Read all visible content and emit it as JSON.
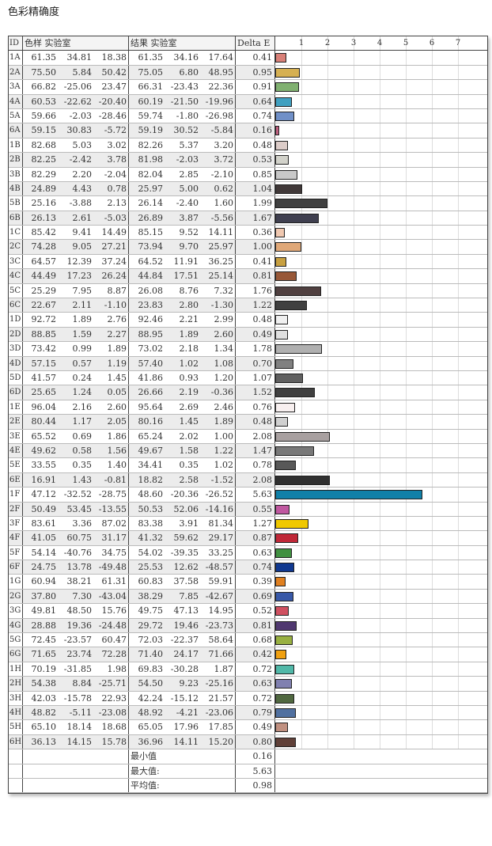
{
  "title": "色彩精确度",
  "headers": {
    "id": "ID",
    "sample": "色样 实验室",
    "result": "结果 实验室",
    "delta": "Delta E"
  },
  "chart_data": {
    "type": "bar",
    "orientation": "horizontal",
    "ticks": [
      "1",
      "2",
      "3",
      "4",
      "5",
      "6",
      "7"
    ],
    "xlim": [
      0,
      8
    ],
    "grid": true
  },
  "rows": [
    {
      "id": "1A",
      "s": [
        "61.35",
        "34.81",
        "18.38"
      ],
      "r": [
        "61.35",
        "34.16",
        "17.64"
      ],
      "de": "0.41",
      "color": "#d98078"
    },
    {
      "id": "2A",
      "s": [
        "75.50",
        "5.84",
        "50.42"
      ],
      "r": [
        "75.05",
        "6.80",
        "48.95"
      ],
      "de": "0.95",
      "color": "#d6b052"
    },
    {
      "id": "3A",
      "s": [
        "66.82",
        "-25.06",
        "23.47"
      ],
      "r": [
        "66.31",
        "-23.43",
        "22.36"
      ],
      "de": "0.91",
      "color": "#80b070"
    },
    {
      "id": "4A",
      "s": [
        "60.53",
        "-22.62",
        "-20.40"
      ],
      "r": [
        "60.19",
        "-21.50",
        "-19.96"
      ],
      "de": "0.64",
      "color": "#40a0c0"
    },
    {
      "id": "5A",
      "s": [
        "59.66",
        "-2.03",
        "-28.46"
      ],
      "r": [
        "59.74",
        "-1.80",
        "-26.98"
      ],
      "de": "0.74",
      "color": "#7090c8"
    },
    {
      "id": "6A",
      "s": [
        "59.15",
        "30.83",
        "-5.72"
      ],
      "r": [
        "59.19",
        "30.52",
        "-5.84"
      ],
      "de": "0.16",
      "color": "#c06080"
    },
    {
      "id": "1B",
      "s": [
        "82.68",
        "5.03",
        "3.02"
      ],
      "r": [
        "82.26",
        "5.37",
        "3.20"
      ],
      "de": "0.48",
      "color": "#dcccc8"
    },
    {
      "id": "2B",
      "s": [
        "82.25",
        "-2.42",
        "3.78"
      ],
      "r": [
        "81.98",
        "-2.03",
        "3.72"
      ],
      "de": "0.53",
      "color": "#d2d2ca"
    },
    {
      "id": "3B",
      "s": [
        "82.29",
        "2.20",
        "-2.04"
      ],
      "r": [
        "82.04",
        "2.85",
        "-2.10"
      ],
      "de": "0.85",
      "color": "#c8c8c8"
    },
    {
      "id": "4B",
      "s": [
        "24.89",
        "4.43",
        "0.78"
      ],
      "r": [
        "25.97",
        "5.00",
        "0.62"
      ],
      "de": "1.04",
      "color": "#403838"
    },
    {
      "id": "5B",
      "s": [
        "25.16",
        "-3.88",
        "2.13"
      ],
      "r": [
        "26.14",
        "-2.40",
        "1.60"
      ],
      "de": "1.99",
      "color": "#404040"
    },
    {
      "id": "6B",
      "s": [
        "26.13",
        "2.61",
        "-5.03"
      ],
      "r": [
        "26.89",
        "3.87",
        "-5.56"
      ],
      "de": "1.67",
      "color": "#404050"
    },
    {
      "id": "1C",
      "s": [
        "85.42",
        "9.41",
        "14.49"
      ],
      "r": [
        "85.15",
        "9.52",
        "14.11"
      ],
      "de": "0.36",
      "color": "#f0c8b0"
    },
    {
      "id": "2C",
      "s": [
        "74.28",
        "9.05",
        "27.21"
      ],
      "r": [
        "73.94",
        "9.70",
        "25.97"
      ],
      "de": "1.00",
      "color": "#e0a878"
    },
    {
      "id": "3C",
      "s": [
        "64.57",
        "12.39",
        "37.24"
      ],
      "r": [
        "64.52",
        "11.91",
        "36.25"
      ],
      "de": "0.41",
      "color": "#c8a040"
    },
    {
      "id": "4C",
      "s": [
        "44.49",
        "17.23",
        "26.24"
      ],
      "r": [
        "44.84",
        "17.51",
        "25.14"
      ],
      "de": "0.81",
      "color": "#985838"
    },
    {
      "id": "5C",
      "s": [
        "25.29",
        "7.95",
        "8.87"
      ],
      "r": [
        "26.08",
        "8.76",
        "7.32"
      ],
      "de": "1.76",
      "color": "#504040"
    },
    {
      "id": "6C",
      "s": [
        "22.67",
        "2.11",
        "-1.10"
      ],
      "r": [
        "23.83",
        "2.80",
        "-1.30"
      ],
      "de": "1.22",
      "color": "#404040"
    },
    {
      "id": "1D",
      "s": [
        "92.72",
        "1.89",
        "2.76"
      ],
      "r": [
        "92.46",
        "2.21",
        "2.99"
      ],
      "de": "0.48",
      "color": "#f0f0f0"
    },
    {
      "id": "2D",
      "s": [
        "88.85",
        "1.59",
        "2.27"
      ],
      "r": [
        "88.95",
        "1.89",
        "2.60"
      ],
      "de": "0.49",
      "color": "#e0e0e0"
    },
    {
      "id": "3D",
      "s": [
        "73.42",
        "0.99",
        "1.89"
      ],
      "r": [
        "73.02",
        "2.18",
        "1.34"
      ],
      "de": "1.78",
      "color": "#b0b0b0"
    },
    {
      "id": "4D",
      "s": [
        "57.15",
        "0.57",
        "1.19"
      ],
      "r": [
        "57.40",
        "1.02",
        "1.08"
      ],
      "de": "0.70",
      "color": "#808080"
    },
    {
      "id": "5D",
      "s": [
        "41.57",
        "0.24",
        "1.45"
      ],
      "r": [
        "41.86",
        "0.93",
        "1.20"
      ],
      "de": "1.07",
      "color": "#606060"
    },
    {
      "id": "6D",
      "s": [
        "25.65",
        "1.24",
        "0.05"
      ],
      "r": [
        "26.66",
        "2.19",
        "-0.36"
      ],
      "de": "1.52",
      "color": "#404040"
    },
    {
      "id": "1E",
      "s": [
        "96.04",
        "2.16",
        "2.60"
      ],
      "r": [
        "95.64",
        "2.69",
        "2.46"
      ],
      "de": "0.76",
      "color": "#f8f0f0"
    },
    {
      "id": "2E",
      "s": [
        "80.44",
        "1.17",
        "2.05"
      ],
      "r": [
        "80.16",
        "1.45",
        "1.89"
      ],
      "de": "0.48",
      "color": "#d0d0d0"
    },
    {
      "id": "3E",
      "s": [
        "65.52",
        "0.69",
        "1.86"
      ],
      "r": [
        "65.24",
        "2.02",
        "1.00"
      ],
      "de": "2.08",
      "color": "#a8a0a0"
    },
    {
      "id": "4E",
      "s": [
        "49.62",
        "0.58",
        "1.56"
      ],
      "r": [
        "49.67",
        "1.58",
        "1.22"
      ],
      "de": "1.47",
      "color": "#787878"
    },
    {
      "id": "5E",
      "s": [
        "33.55",
        "0.35",
        "1.40"
      ],
      "r": [
        "34.41",
        "0.35",
        "1.02"
      ],
      "de": "0.78",
      "color": "#585858"
    },
    {
      "id": "6E",
      "s": [
        "16.91",
        "1.43",
        "-0.81"
      ],
      "r": [
        "18.82",
        "2.58",
        "-1.52"
      ],
      "de": "2.08",
      "color": "#303030"
    },
    {
      "id": "1F",
      "s": [
        "47.12",
        "-32.52",
        "-28.75"
      ],
      "r": [
        "48.60",
        "-20.36",
        "-26.52"
      ],
      "de": "5.63",
      "color": "#1080a8"
    },
    {
      "id": "2F",
      "s": [
        "50.49",
        "53.45",
        "-13.55"
      ],
      "r": [
        "50.53",
        "52.06",
        "-14.16"
      ],
      "de": "0.55",
      "color": "#c058a0"
    },
    {
      "id": "3F",
      "s": [
        "83.61",
        "3.36",
        "87.02"
      ],
      "r": [
        "83.38",
        "3.91",
        "81.34"
      ],
      "de": "1.27",
      "color": "#f0c800"
    },
    {
      "id": "4F",
      "s": [
        "41.05",
        "60.75",
        "31.17"
      ],
      "r": [
        "41.32",
        "59.62",
        "29.17"
      ],
      "de": "0.87",
      "color": "#c02838"
    },
    {
      "id": "5F",
      "s": [
        "54.14",
        "-40.76",
        "34.75"
      ],
      "r": [
        "54.02",
        "-39.35",
        "33.25"
      ],
      "de": "0.63",
      "color": "#409040"
    },
    {
      "id": "6F",
      "s": [
        "24.75",
        "13.78",
        "-49.48"
      ],
      "r": [
        "25.53",
        "12.62",
        "-48.57"
      ],
      "de": "0.74",
      "color": "#103890"
    },
    {
      "id": "1G",
      "s": [
        "60.94",
        "38.21",
        "61.31"
      ],
      "r": [
        "60.83",
        "37.58",
        "59.91"
      ],
      "de": "0.39",
      "color": "#e08020"
    },
    {
      "id": "2G",
      "s": [
        "37.80",
        "7.30",
        "-43.04"
      ],
      "r": [
        "38.29",
        "7.85",
        "-42.67"
      ],
      "de": "0.69",
      "color": "#3858a8"
    },
    {
      "id": "3G",
      "s": [
        "49.81",
        "48.50",
        "15.76"
      ],
      "r": [
        "49.75",
        "47.13",
        "14.95"
      ],
      "de": "0.52",
      "color": "#d05060"
    },
    {
      "id": "4G",
      "s": [
        "28.88",
        "19.36",
        "-24.48"
      ],
      "r": [
        "29.72",
        "19.46",
        "-23.73"
      ],
      "de": "0.81",
      "color": "#503870"
    },
    {
      "id": "5G",
      "s": [
        "72.45",
        "-23.57",
        "60.47"
      ],
      "r": [
        "72.03",
        "-22.37",
        "58.64"
      ],
      "de": "0.68",
      "color": "#98b040"
    },
    {
      "id": "6G",
      "s": [
        "71.65",
        "23.74",
        "72.28"
      ],
      "r": [
        "71.40",
        "24.17",
        "71.66"
      ],
      "de": "0.42",
      "color": "#f0a010"
    },
    {
      "id": "1H",
      "s": [
        "70.19",
        "-31.85",
        "1.98"
      ],
      "r": [
        "69.83",
        "-30.28",
        "1.87"
      ],
      "de": "0.72",
      "color": "#50b8a8"
    },
    {
      "id": "2H",
      "s": [
        "54.38",
        "8.84",
        "-25.71"
      ],
      "r": [
        "54.50",
        "9.23",
        "-25.16"
      ],
      "de": "0.63",
      "color": "#8080b0"
    },
    {
      "id": "3H",
      "s": [
        "42.03",
        "-15.78",
        "22.93"
      ],
      "r": [
        "42.24",
        "-15.12",
        "21.57"
      ],
      "de": "0.72",
      "color": "#506840"
    },
    {
      "id": "4H",
      "s": [
        "48.82",
        "-5.11",
        "-23.08"
      ],
      "r": [
        "48.92",
        "-4.21",
        "-23.06"
      ],
      "de": "0.79",
      "color": "#5070a0"
    },
    {
      "id": "5H",
      "s": [
        "65.10",
        "18.14",
        "18.68"
      ],
      "r": [
        "65.05",
        "17.96",
        "17.85"
      ],
      "de": "0.49",
      "color": "#c09080"
    },
    {
      "id": "6H",
      "s": [
        "36.13",
        "14.15",
        "15.78"
      ],
      "r": [
        "36.96",
        "14.11",
        "15.20"
      ],
      "de": "0.80",
      "color": "#604038"
    }
  ],
  "summary": [
    {
      "label": "最小值",
      "value": "0.16"
    },
    {
      "label": "最大值:",
      "value": "5.63"
    },
    {
      "label": "平均值:",
      "value": "0.98"
    }
  ]
}
